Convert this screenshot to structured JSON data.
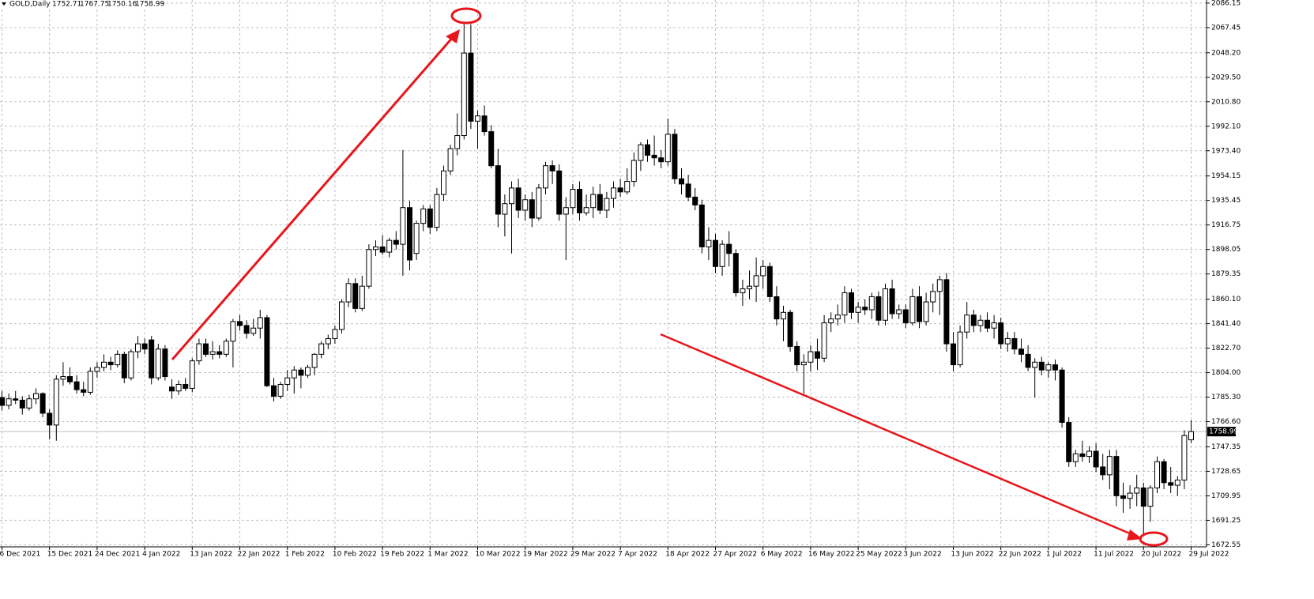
{
  "chart_data": {
    "type": "candlestick",
    "title": "GOLD,Daily",
    "categories": [
      "6 Dec 2021",
      null,
      null,
      null,
      null,
      null,
      null,
      "15 Dec 2021",
      null,
      null,
      null,
      null,
      null,
      null,
      "24 Dec 2021",
      null,
      null,
      null,
      null,
      null,
      null,
      "4 Jan 2022",
      null,
      null,
      null,
      null,
      null,
      null,
      "13 Jan 2022",
      null,
      null,
      null,
      null,
      null,
      null,
      "22 Jan 2022",
      null,
      null,
      null,
      null,
      null,
      null,
      "1 Feb 2022",
      null,
      null,
      null,
      null,
      null,
      null,
      "10 Feb 2022",
      null,
      null,
      null,
      null,
      null,
      null,
      "19 Feb 2022",
      null,
      null,
      null,
      null,
      null,
      null,
      "1 Mar 2022",
      null,
      null,
      null,
      null,
      null,
      null,
      "10 Mar 2022",
      null,
      null,
      null,
      null,
      null,
      null,
      "19 Mar 2022",
      null,
      null,
      null,
      null,
      null,
      null,
      "29 Mar 2022",
      null,
      null,
      null,
      null,
      null,
      null,
      "7 Apr 2022",
      null,
      null,
      null,
      null,
      null,
      null,
      "18 Apr 2022",
      null,
      null,
      null,
      null,
      null,
      null,
      "27 Apr 2022",
      null,
      null,
      null,
      null,
      null,
      null,
      "6 May 2022",
      null,
      null,
      null,
      null,
      null,
      null,
      "16 May 2022",
      null,
      null,
      null,
      null,
      null,
      null,
      "25 May 2022",
      null,
      null,
      null,
      null,
      null,
      null,
      "3 Jun 2022",
      null,
      null,
      null,
      null,
      null,
      null,
      "13 Jun 2022",
      null,
      null,
      null,
      null,
      null,
      null,
      "22 Jun 2022",
      null,
      null,
      null,
      null,
      null,
      null,
      "1 Jul 2022",
      null,
      null,
      null,
      null,
      null,
      null,
      "11 Jul 2022",
      null,
      null,
      null,
      null,
      null,
      null,
      "20 Jul 2022",
      null,
      null,
      null,
      null,
      null,
      null,
      "29 Jul 2022"
    ],
    "open": [
      1785,
      1779,
      1784,
      1783,
      1777,
      1784,
      1788,
      1773,
      1764,
      1799,
      1801,
      1797,
      1791,
      1789,
      1805,
      1808,
      1812,
      1810,
      1818,
      1800,
      1820,
      1826,
      1829,
      1800,
      1822,
      1793,
      1790,
      1795,
      1792,
      1813,
      1826,
      1818,
      1820,
      1818,
      1828,
      1843,
      1840,
      1834,
      1838,
      1846,
      1794,
      1786,
      1795,
      1800,
      1806,
      1802,
      1808,
      1818,
      1826,
      1830,
      1837,
      1858,
      1872,
      1853,
      1870,
      1898,
      1900,
      1896,
      1905,
      1902,
      1930,
      1895,
      1918,
      1929,
      1915,
      1940,
      1958,
      1975,
      1985,
      2048,
      1996,
      2000,
      1988,
      1962,
      1925,
      1933,
      1945,
      1928,
      1936,
      1922,
      1945,
      1962,
      1958,
      1925,
      1930,
      1944,
      1926,
      1930,
      1940,
      1928,
      1937,
      1945,
      1942,
      1950,
      1966,
      1978,
      1970,
      1968,
      1965,
      1986,
      1952,
      1948,
      1938,
      1932,
      1900,
      1905,
      1885,
      1902,
      1895,
      1865,
      1868,
      1870,
      1878,
      1885,
      1862,
      1845,
      1850,
      1824,
      1810,
      1812,
      1820,
      1815,
      1842,
      1845,
      1848,
      1865,
      1850,
      1854,
      1852,
      1862,
      1844,
      1868,
      1849,
      1852,
      1842,
      1862,
      1843,
      1858,
      1866,
      1875,
      1826,
      1810,
      1835,
      1848,
      1840,
      1844,
      1838,
      1842,
      1826,
      1830,
      1822,
      1818,
      1808,
      1812,
      1806,
      1810,
      1806,
      1766,
      1736,
      1742,
      1740,
      1744,
      1732,
      1726,
      1740,
      1710,
      1708,
      1712,
      1716,
      1702,
      1716,
      1736,
      1720,
      1718,
      1722,
      1752.71
    ],
    "high": [
      1790,
      1788,
      1790,
      1786,
      1787,
      1792,
      1789,
      1776,
      1802,
      1812,
      1808,
      1802,
      1797,
      1808,
      1812,
      1818,
      1816,
      1821,
      1820,
      1822,
      1832,
      1830,
      1832,
      1826,
      1825,
      1799,
      1798,
      1800,
      1815,
      1830,
      1830,
      1828,
      1825,
      1830,
      1845,
      1848,
      1844,
      1845,
      1852,
      1848,
      1800,
      1797,
      1806,
      1809,
      1808,
      1810,
      1819,
      1828,
      1833,
      1840,
      1860,
      1876,
      1876,
      1878,
      1902,
      1905,
      1909,
      1907,
      1912,
      1974,
      1935,
      1920,
      1932,
      1932,
      1945,
      1962,
      1978,
      2002,
      2070,
      2070,
      2004,
      2008,
      1993,
      1975,
      1940,
      1950,
      1952,
      1940,
      1942,
      1948,
      1965,
      1966,
      1963,
      1938,
      1948,
      1950,
      1940,
      1946,
      1948,
      1942,
      1950,
      1952,
      1960,
      1972,
      1980,
      1982,
      1985,
      1974,
      1998,
      1990,
      1960,
      1955,
      1945,
      1936,
      1915,
      1910,
      1905,
      1912,
      1898,
      1875,
      1882,
      1892,
      1890,
      1888,
      1870,
      1855,
      1852,
      1828,
      1818,
      1825,
      1830,
      1848,
      1850,
      1856,
      1870,
      1868,
      1858,
      1860,
      1865,
      1866,
      1872,
      1875,
      1856,
      1856,
      1868,
      1870,
      1865,
      1872,
      1878,
      1880,
      1835,
      1840,
      1858,
      1852,
      1848,
      1850,
      1848,
      1846,
      1835,
      1835,
      1830,
      1825,
      1815,
      1816,
      1812,
      1814,
      1808,
      1770,
      1745,
      1752,
      1748,
      1750,
      1742,
      1745,
      1745,
      1720,
      1718,
      1726,
      1720,
      1718,
      1740,
      1738,
      1732,
      1725,
      1760,
      1767.75
    ],
    "low": [
      1775,
      1776,
      1780,
      1772,
      1775,
      1780,
      1770,
      1753,
      1752,
      1794,
      1795,
      1788,
      1786,
      1787,
      1800,
      1805,
      1806,
      1808,
      1796,
      1798,
      1815,
      1818,
      1795,
      1798,
      1798,
      1784,
      1787,
      1790,
      1789,
      1810,
      1816,
      1814,
      1815,
      1816,
      1808,
      1836,
      1830,
      1832,
      1830,
      1793,
      1782,
      1784,
      1790,
      1788,
      1792,
      1800,
      1802,
      1815,
      1822,
      1826,
      1834,
      1854,
      1850,
      1851,
      1868,
      1893,
      1894,
      1892,
      1898,
      1878,
      1882,
      1890,
      1912,
      1910,
      1912,
      1935,
      1955,
      1970,
      1982,
      1990,
      1975,
      1985,
      1960,
      1915,
      1908,
      1895,
      1922,
      1920,
      1915,
      1920,
      1940,
      1948,
      1920,
      1890,
      1925,
      1920,
      1924,
      1922,
      1925,
      1922,
      1930,
      1938,
      1940,
      1946,
      1958,
      1965,
      1962,
      1960,
      1962,
      1948,
      1940,
      1935,
      1928,
      1895,
      1890,
      1880,
      1878,
      1885,
      1862,
      1855,
      1860,
      1858,
      1868,
      1858,
      1840,
      1828,
      1820,
      1805,
      1788,
      1805,
      1806,
      1812,
      1835,
      1840,
      1842,
      1845,
      1842,
      1848,
      1845,
      1840,
      1840,
      1845,
      1845,
      1838,
      1840,
      1838,
      1840,
      1850,
      1848,
      1820,
      1805,
      1808,
      1830,
      1835,
      1835,
      1835,
      1830,
      1822,
      1820,
      1818,
      1812,
      1805,
      1785,
      1802,
      1800,
      1798,
      1762,
      1732,
      1732,
      1736,
      1735,
      1728,
      1722,
      1715,
      1702,
      1697,
      1700,
      1702,
      1680,
      1690,
      1712,
      1715,
      1712,
      1710,
      1715,
      1750.16
    ],
    "close": [
      1779,
      1784,
      1783,
      1777,
      1784,
      1788,
      1773,
      1764,
      1799,
      1801,
      1797,
      1791,
      1789,
      1805,
      1808,
      1812,
      1810,
      1818,
      1800,
      1820,
      1826,
      1822,
      1800,
      1822,
      1801,
      1790,
      1795,
      1792,
      1813,
      1826,
      1818,
      1820,
      1818,
      1828,
      1843,
      1840,
      1834,
      1838,
      1846,
      1794,
      1786,
      1795,
      1800,
      1806,
      1802,
      1808,
      1818,
      1826,
      1830,
      1837,
      1858,
      1872,
      1853,
      1870,
      1898,
      1900,
      1896,
      1905,
      1902,
      1930,
      1890,
      1918,
      1929,
      1915,
      1940,
      1958,
      1975,
      1985,
      2048,
      1996,
      2000,
      1988,
      1962,
      1925,
      1933,
      1945,
      1928,
      1936,
      1922,
      1945,
      1962,
      1958,
      1925,
      1930,
      1944,
      1926,
      1930,
      1940,
      1928,
      1937,
      1945,
      1942,
      1950,
      1966,
      1978,
      1970,
      1968,
      1965,
      1986,
      1952,
      1948,
      1938,
      1932,
      1900,
      1905,
      1885,
      1902,
      1895,
      1865,
      1868,
      1870,
      1878,
      1885,
      1862,
      1845,
      1850,
      1824,
      1810,
      1812,
      1820,
      1815,
      1842,
      1845,
      1848,
      1865,
      1850,
      1854,
      1852,
      1862,
      1844,
      1868,
      1849,
      1852,
      1842,
      1862,
      1843,
      1858,
      1866,
      1875,
      1826,
      1810,
      1835,
      1848,
      1840,
      1844,
      1838,
      1842,
      1826,
      1830,
      1822,
      1818,
      1808,
      1812,
      1806,
      1810,
      1806,
      1766,
      1736,
      1742,
      1740,
      1744,
      1732,
      1726,
      1740,
      1710,
      1708,
      1712,
      1716,
      1702,
      1716,
      1736,
      1720,
      1718,
      1722,
      1756,
      1758.99
    ],
    "ylim": [
      1671.0,
      2088.5
    ],
    "yticks": [
      2086.15,
      2067.45,
      {
        "value": 2048.2,
        "label": "2048.20"
      },
      {
        "value": 2029.5,
        "label": "2029.50"
      },
      {
        "value": 2010.8,
        "label": "2010.80"
      },
      {
        "value": 1992.1,
        "label": "1992.10"
      },
      {
        "value": 1973.4,
        "label": "1973.40"
      },
      1954.15,
      1935.45,
      1916.75,
      1898.05,
      1879.35,
      {
        "value": 1860.1,
        "label": "1860.10"
      },
      {
        "value": 1841.4,
        "label": "1841.40"
      },
      {
        "value": 1822.7,
        "label": "1822.70"
      },
      {
        "value": 1804,
        "label": "1804.00"
      },
      {
        "value": 1785.3,
        "label": "1785.30"
      },
      {
        "value": 1766.6,
        "label": "1766.60"
      },
      1747.35,
      1728.65,
      1709.95,
      1691.25,
      1672.55
    ],
    "grid": true,
    "up_color": "#ffffff",
    "down_color": "#000000"
  }
}
